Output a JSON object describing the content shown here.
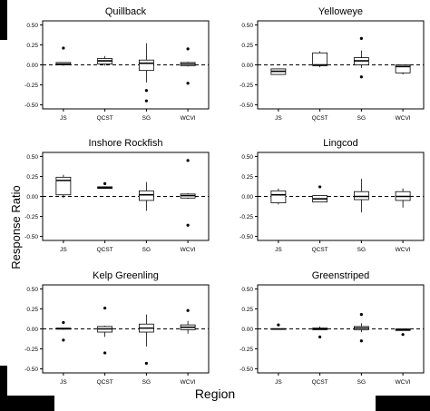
{
  "figure": {
    "ylabel": "Response Ratio",
    "xlabel": "Region"
  },
  "chart_data": [
    {
      "type": "boxplot",
      "title": "Quillback",
      "categories": [
        "JS",
        "QCST",
        "SG",
        "WCVI"
      ],
      "yticks": [
        "0.50",
        "0.25",
        "0.00",
        "-0.25",
        "-0.50"
      ],
      "ylim": [
        -0.55,
        0.55
      ],
      "reference_line": 0,
      "boxes": [
        {
          "category": "JS",
          "whisker_low": -0.01,
          "q1": 0.0,
          "median": 0.01,
          "q3": 0.03,
          "whisker_high": 0.03,
          "outliers": [
            0.21
          ]
        },
        {
          "category": "QCST",
          "whisker_low": -0.01,
          "q1": 0.01,
          "median": 0.05,
          "q3": 0.08,
          "whisker_high": 0.11,
          "outliers": []
        },
        {
          "category": "SG",
          "whisker_low": -0.22,
          "q1": -0.07,
          "median": 0.02,
          "q3": 0.06,
          "whisker_high": 0.27,
          "outliers": [
            -0.32,
            -0.45
          ]
        },
        {
          "category": "WCVI",
          "whisker_low": -0.02,
          "q1": -0.01,
          "median": 0.01,
          "q3": 0.03,
          "whisker_high": 0.04,
          "outliers": [
            0.2,
            -0.23
          ]
        }
      ]
    },
    {
      "type": "boxplot",
      "title": "Yelloweye",
      "categories": [
        "JS",
        "QCST",
        "SG",
        "WCVI"
      ],
      "yticks": [
        "0.50",
        "0.25",
        "0.00",
        "-0.25",
        "-0.50"
      ],
      "ylim": [
        -0.55,
        0.55
      ],
      "reference_line": 0,
      "boxes": [
        {
          "category": "JS",
          "whisker_low": -0.12,
          "q1": -0.12,
          "median": -0.08,
          "q3": -0.05,
          "whisker_high": -0.05,
          "outliers": []
        },
        {
          "category": "QCST",
          "whisker_low": -0.03,
          "q1": -0.01,
          "median": 0.0,
          "q3": 0.15,
          "whisker_high": 0.17,
          "outliers": []
        },
        {
          "category": "SG",
          "whisker_low": -0.04,
          "q1": 0.0,
          "median": 0.05,
          "q3": 0.09,
          "whisker_high": 0.18,
          "outliers": [
            0.33,
            -0.15
          ]
        },
        {
          "category": "WCVI",
          "whisker_low": -0.12,
          "q1": -0.1,
          "median": -0.02,
          "q3": 0.0,
          "whisker_high": 0.0,
          "outliers": []
        }
      ]
    },
    {
      "type": "boxplot",
      "title": "Inshore Rockfish",
      "categories": [
        "JS",
        "QCST",
        "SG",
        "WCVI"
      ],
      "yticks": [
        "0.50",
        "0.25",
        "0.00",
        "-0.25",
        "-0.50"
      ],
      "ylim": [
        -0.55,
        0.55
      ],
      "reference_line": 0,
      "boxes": [
        {
          "category": "JS",
          "whisker_low": -0.02,
          "q1": 0.02,
          "median": 0.2,
          "q3": 0.24,
          "whisker_high": 0.27,
          "outliers": []
        },
        {
          "category": "QCST",
          "whisker_low": 0.1,
          "q1": 0.1,
          "median": 0.11,
          "q3": 0.12,
          "whisker_high": 0.12,
          "outliers": [
            0.16
          ]
        },
        {
          "category": "SG",
          "whisker_low": -0.18,
          "q1": -0.05,
          "median": 0.02,
          "q3": 0.07,
          "whisker_high": 0.18,
          "outliers": []
        },
        {
          "category": "WCVI",
          "whisker_low": -0.03,
          "q1": -0.02,
          "median": 0.01,
          "q3": 0.03,
          "whisker_high": 0.04,
          "outliers": [
            0.45,
            -0.36
          ]
        }
      ]
    },
    {
      "type": "boxplot",
      "title": "Lingcod",
      "categories": [
        "JS",
        "QCST",
        "SG",
        "WCVI"
      ],
      "yticks": [
        "0.50",
        "0.25",
        "0.00",
        "-0.25",
        "-0.50"
      ],
      "ylim": [
        -0.55,
        0.55
      ],
      "reference_line": 0,
      "boxes": [
        {
          "category": "JS",
          "whisker_low": -0.1,
          "q1": -0.08,
          "median": 0.02,
          "q3": 0.07,
          "whisker_high": 0.1,
          "outliers": []
        },
        {
          "category": "QCST",
          "whisker_low": -0.07,
          "q1": -0.07,
          "median": -0.03,
          "q3": 0.01,
          "whisker_high": 0.01,
          "outliers": [
            0.12
          ]
        },
        {
          "category": "SG",
          "whisker_low": -0.2,
          "q1": -0.04,
          "median": 0.0,
          "q3": 0.06,
          "whisker_high": 0.22,
          "outliers": []
        },
        {
          "category": "WCVI",
          "whisker_low": -0.14,
          "q1": -0.05,
          "median": 0.0,
          "q3": 0.06,
          "whisker_high": 0.1,
          "outliers": []
        }
      ]
    },
    {
      "type": "boxplot",
      "title": "Kelp Greenling",
      "categories": [
        "JS",
        "QCST",
        "SG",
        "WCVI"
      ],
      "yticks": [
        "0.50",
        "0.25",
        "0.00",
        "-0.25",
        "-0.50"
      ],
      "ylim": [
        -0.55,
        0.55
      ],
      "reference_line": 0,
      "boxes": [
        {
          "category": "JS",
          "whisker_low": -0.01,
          "q1": 0.0,
          "median": 0.0,
          "q3": 0.01,
          "whisker_high": 0.01,
          "outliers": [
            0.08,
            -0.14
          ]
        },
        {
          "category": "QCST",
          "whisker_low": -0.1,
          "q1": -0.04,
          "median": 0.0,
          "q3": 0.03,
          "whisker_high": 0.04,
          "outliers": [
            0.26,
            -0.3
          ]
        },
        {
          "category": "SG",
          "whisker_low": -0.22,
          "q1": -0.04,
          "median": 0.01,
          "q3": 0.06,
          "whisker_high": 0.18,
          "outliers": [
            -0.43
          ]
        },
        {
          "category": "WCVI",
          "whisker_low": -0.06,
          "q1": -0.01,
          "median": 0.02,
          "q3": 0.05,
          "whisker_high": 0.1,
          "outliers": [
            0.23
          ]
        }
      ]
    },
    {
      "type": "boxplot",
      "title": "Greenstriped",
      "categories": [
        "JS",
        "QCST",
        "SG",
        "WCVI"
      ],
      "yticks": [
        "0.50",
        "0.25",
        "0.00",
        "-0.25",
        "-0.50"
      ],
      "ylim": [
        -0.55,
        0.55
      ],
      "reference_line": 0,
      "boxes": [
        {
          "category": "JS",
          "whisker_low": 0.0,
          "q1": 0.0,
          "median": 0.0,
          "q3": 0.0,
          "whisker_high": 0.0,
          "outliers": [
            0.05
          ]
        },
        {
          "category": "QCST",
          "whisker_low": -0.01,
          "q1": -0.01,
          "median": 0.0,
          "q3": 0.01,
          "whisker_high": 0.03,
          "outliers": [
            -0.1
          ]
        },
        {
          "category": "SG",
          "whisker_low": -0.04,
          "q1": -0.01,
          "median": 0.01,
          "q3": 0.03,
          "whisker_high": 0.07,
          "outliers": [
            0.18,
            -0.15
          ]
        },
        {
          "category": "WCVI",
          "whisker_low": -0.02,
          "q1": -0.02,
          "median": -0.01,
          "q3": 0.0,
          "whisker_high": 0.0,
          "outliers": [
            -0.07
          ]
        }
      ]
    }
  ]
}
